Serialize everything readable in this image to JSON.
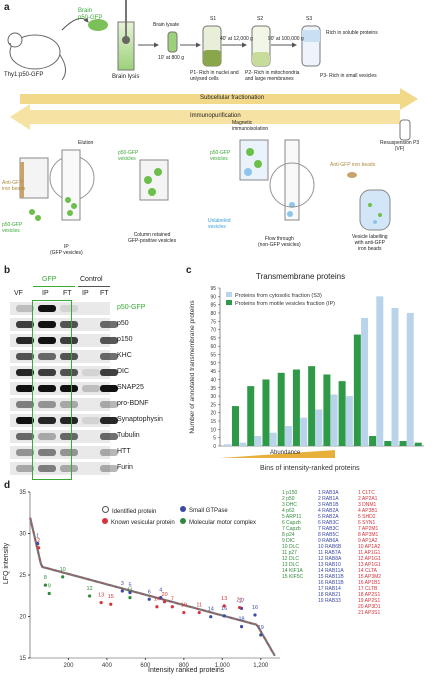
{
  "panels": {
    "a": "a",
    "b": "b",
    "c": "c",
    "d": "d"
  },
  "panel_a": {
    "mouse_label": "Thy1:p50-GFP",
    "brain_label": "Brain\np50-GFP",
    "brain_lysis": "Brain lysis",
    "brain_lysate": "Brain lysate",
    "spin1": "10' at 800 g",
    "spin2": "40' at 12,000 g",
    "spin3": "90' at 100,000 g",
    "s1": "S1",
    "s2": "S2",
    "s3": "S3",
    "p1": "P1- Rich in nuclei and\nunlysed cells",
    "p2": "P2- Rich in mitochondria\nand large membranes",
    "p3": "P3- Rich in small vesicles",
    "s3_note": "Rich in soluble proteins",
    "subcellular": "Subcellular fractionation",
    "immuno": "Immunopurification",
    "resuspension": "Resuspension P3\n(VF)",
    "elution": "Elution",
    "magnetic": "Magnetic\nimmunoisolation",
    "iron_beads": "Anti-GFP iron beads",
    "anti_gfp_beads": "Anti-GFP\niron beads",
    "p50_vesicles": "p50-GFP\nvesicles",
    "p50_vesicles2": "p50-GFP\nvesicles",
    "p50_vesicles3": "p50-GFP\nvesicles",
    "unlabeled": "Unlabeled\nvesicles",
    "ip_caption": "IP\n(GFP vesicles)",
    "column_caption": "Column retained\nGFP-positive vesicles",
    "flow_caption": "Flow through\n(non-GFP vesicles)",
    "labelling_caption": "Vesicle labelling\nwith anti-GFP\niron beads"
  },
  "panel_b": {
    "group_gfp": "GFP",
    "group_control": "Control",
    "lanes": [
      "VF",
      "IP",
      "FT",
      "IP",
      "FT"
    ],
    "rows": [
      "p50-GFP",
      "p50",
      "p150",
      "KHC",
      "DIC",
      "SNAP25",
      "pro-BDNF",
      "Synaptophysin",
      "Tubulin",
      "HTT",
      "Furin"
    ],
    "highlight_color": "#3aa935"
  },
  "chart_data": {
    "type": "bar",
    "title": "Transmembrane proteins",
    "ylabel": "Number of annotated transmembrane proteins",
    "xlabel": "Bins of intensity-ranked proteins",
    "abundance_label": "Abundance",
    "ylim": [
      0,
      95
    ],
    "yticks": [
      0,
      5,
      10,
      15,
      20,
      25,
      30,
      35,
      40,
      45,
      50,
      55,
      60,
      65,
      70,
      75,
      80,
      85,
      90,
      95
    ],
    "legend": "top-left",
    "series": [
      {
        "name": "Proteins from cytosolic fraction (S3)",
        "color": "#b9d4ea",
        "values": [
          1,
          2,
          6,
          8,
          12,
          17,
          22,
          31,
          30,
          77,
          90,
          83,
          80
        ]
      },
      {
        "name": "Proteins from motile vesicles fraction (IP)",
        "color": "#2e9a48",
        "values": [
          24,
          36,
          40,
          44,
          46,
          48,
          43,
          39,
          67,
          6,
          3,
          3,
          2
        ]
      }
    ]
  },
  "scatter_d": {
    "ylabel": "LFQ intensity",
    "xlabel": "Intensity ranked proteins",
    "xticks": [
      "200",
      "400",
      "600",
      "800",
      "1,000",
      "1,200"
    ],
    "yticks": [
      "15",
      "20",
      "25",
      "30",
      "35"
    ],
    "legend": [
      "Identified protein",
      "Known vesicular protein",
      "Small GTPase",
      "Molecular motor complex"
    ],
    "colors": {
      "identified": "#ffffff",
      "known": "#d6323a",
      "gtpase": "#3b4aa8",
      "motor": "#2e8a3a"
    },
    "motor_list": [
      "1 p150",
      "2 p50",
      "3 DHC",
      "4 p62",
      "5 ARP11",
      "6 Capzb",
      "7 Capzb",
      "8 p24",
      "9 DIC",
      "10 DLC",
      "11 p27",
      "12 DLC",
      "13 DLC",
      "14 KIF1A",
      "15 KIF5C"
    ],
    "gtpase_list": [
      "1 RAB3A",
      "2 RAB1A",
      "3 RAB1B",
      "4 RAB2A",
      "5 RAB2A",
      "6 RAB3C",
      "7 RAB3C",
      "8 RAB5C",
      "9 RAB6A",
      "10 RAB6B",
      "11 RAB7A",
      "12 RAB8A",
      "13 RAB10",
      "14 RAB11A",
      "15 RAB11B",
      "16 RAB11B",
      "17 RAB14",
      "18 RAB21",
      "19 RAB33"
    ],
    "known_list": [
      "1 CLTC",
      "2 AP2A1",
      "3 DNM1",
      "4 AP3B1",
      "5 SHD2",
      "6 SYN1",
      "7 AP2M1",
      "8 AP3M1",
      "9 AP1A2",
      "10 AP1A2",
      "11 AP1G1",
      "12 AP1G1",
      "13 AP1G1",
      "14 CLTA",
      "15 AP3M2",
      "16 AP1B1",
      "17 CLTB",
      "18 AP2S1",
      "19 AP2S1",
      "20 AP3D1",
      "21 AP3S1"
    ],
    "point_labels": {
      "motor": [
        [
          "9",
          100,
          23.5
        ],
        [
          "10",
          170,
          25.5
        ],
        [
          "12",
          310,
          23.2
        ],
        [
          "8",
          80,
          24.5
        ],
        [
          "11",
          520,
          23.0
        ]
      ],
      "gtpase": [
        [
          "1",
          40,
          29.5
        ],
        [
          "3",
          480,
          23.8
        ],
        [
          "5",
          520,
          23.6
        ],
        [
          "4",
          680,
          23.0
        ],
        [
          "6",
          620,
          22.8
        ],
        [
          "14",
          940,
          20.7
        ],
        [
          "16",
          1010,
          20.8
        ],
        [
          "18",
          1100,
          19.5
        ],
        [
          "19",
          1200,
          18.5
        ],
        [
          "16",
          1170,
          20.9
        ],
        [
          "17",
          1100,
          21.7
        ]
      ],
      "known": [
        [
          "2",
          45,
          29
        ],
        [
          "13",
          370,
          22.4
        ],
        [
          "15",
          420,
          22.2
        ],
        [
          "7",
          740,
          21.9
        ],
        [
          "20",
          700,
          22.5
        ],
        [
          "14",
          660,
          21.9
        ],
        [
          "19",
          800,
          21.2
        ],
        [
          "21",
          1090,
          21.8
        ],
        [
          "13",
          1010,
          22.0
        ],
        [
          "11",
          880,
          21.2
        ]
      ]
    }
  }
}
